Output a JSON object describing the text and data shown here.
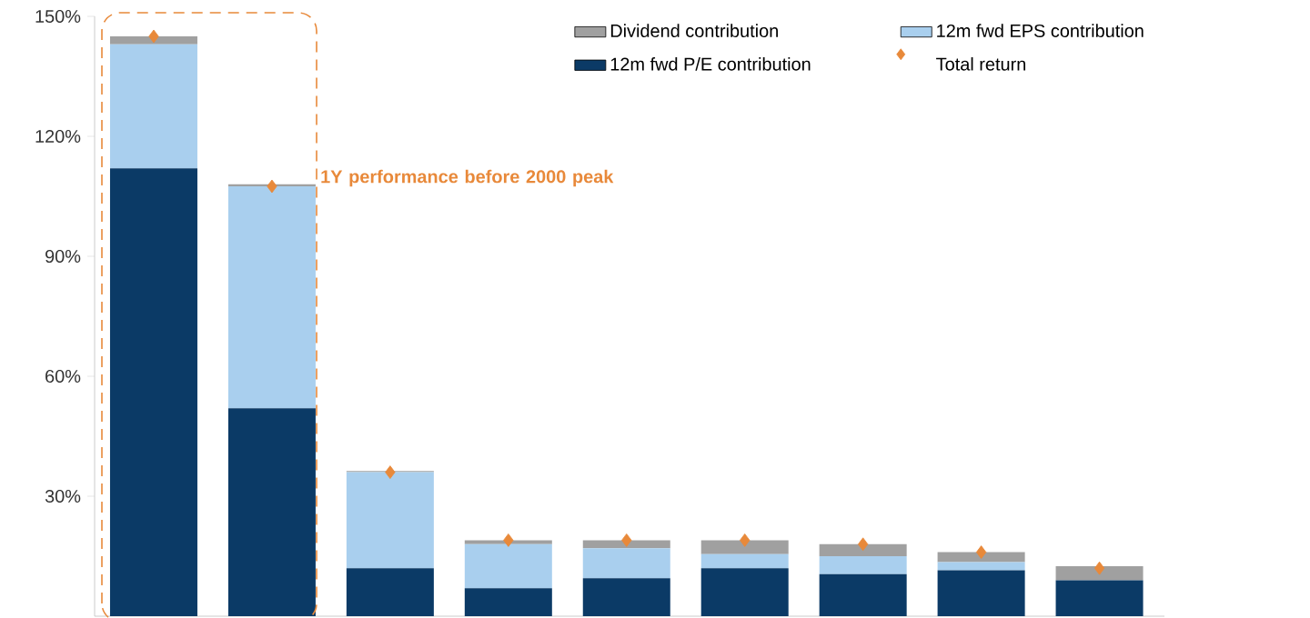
{
  "chart_data": {
    "type": "bar",
    "stacked": true,
    "categories": [
      null,
      null,
      null,
      null,
      null,
      null,
      null,
      null,
      null
    ],
    "series": [
      {
        "name": "12m fwd P/E contribution",
        "color": "#0b3a66",
        "values": [
          112,
          52,
          12,
          7,
          9.5,
          12,
          10.5,
          11.5,
          9
        ]
      },
      {
        "name": "12m fwd EPS contribution",
        "color": "#a9cfee",
        "values": [
          31,
          55.5,
          24,
          11,
          7.5,
          3.5,
          4.5,
          2,
          0
        ]
      },
      {
        "name": "Dividend contribution",
        "color": "#a0a0a0",
        "values": [
          2,
          0.5,
          0.3,
          1,
          2,
          3.5,
          3,
          2.5,
          3.5
        ]
      },
      {
        "name": "Total return",
        "type": "scatter",
        "marker": "diamond",
        "color": "#e8893a",
        "values": [
          145,
          107.5,
          36,
          19,
          19,
          19,
          18,
          16,
          12
        ]
      }
    ],
    "ylim": [
      0,
      150
    ],
    "yticks": [
      {
        "value": 30,
        "label": "30%"
      },
      {
        "value": 60,
        "label": "60%"
      },
      {
        "value": 90,
        "label": "90%"
      },
      {
        "value": 120,
        "label": "120%"
      },
      {
        "value": 150,
        "label": "150%"
      }
    ],
    "tick_labels": "y",
    "grid": false,
    "legend": "top right",
    "annotations": [
      "1Y performance before 2000 peak"
    ]
  }
}
